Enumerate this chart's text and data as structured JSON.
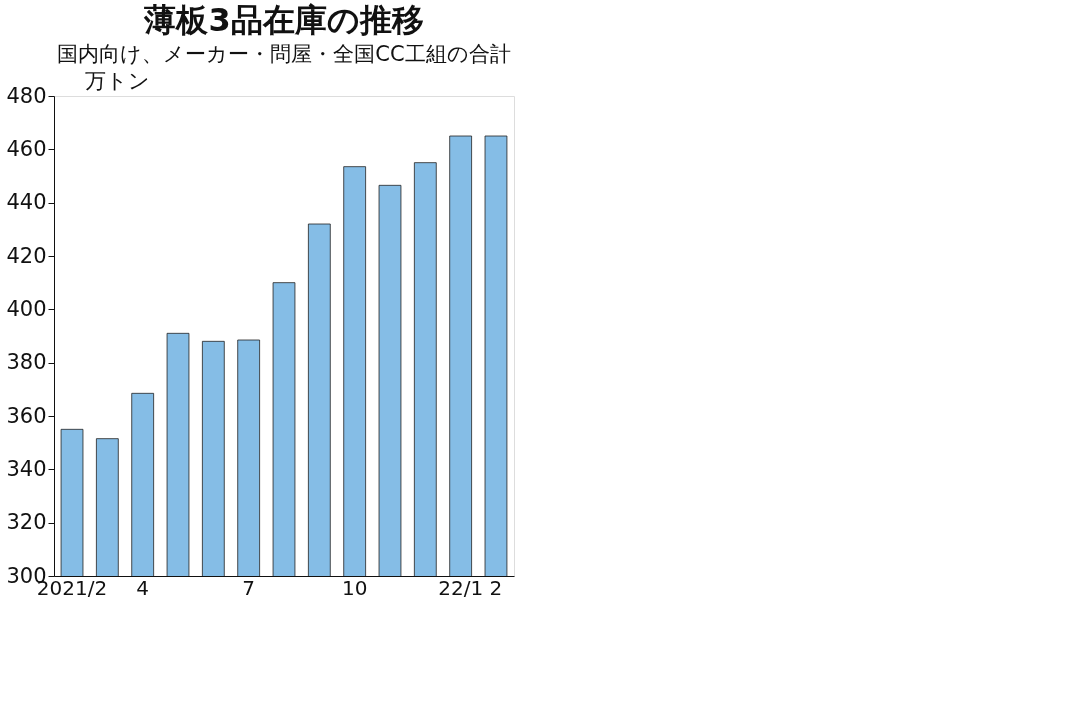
{
  "chart_data": {
    "type": "bar",
    "title": "薄板3品在庫の推移",
    "subtitle": "国内向け、メーカー・問屋・全国CC工組の合計",
    "ylabel": "万トン",
    "categories": [
      "2021/2",
      null,
      "4",
      null,
      null,
      "7",
      null,
      null,
      "10",
      null,
      null,
      "22/1",
      "2"
    ],
    "values": [
      355,
      351.5,
      368.5,
      391,
      388,
      388.5,
      410,
      432,
      453.5,
      446.5,
      455,
      465,
      465
    ],
    "color": "#85bde6",
    "ylim": [
      300,
      480
    ],
    "yticks": [
      300,
      320,
      340,
      360,
      380,
      400,
      420,
      440,
      460,
      480
    ],
    "grid": false
  }
}
